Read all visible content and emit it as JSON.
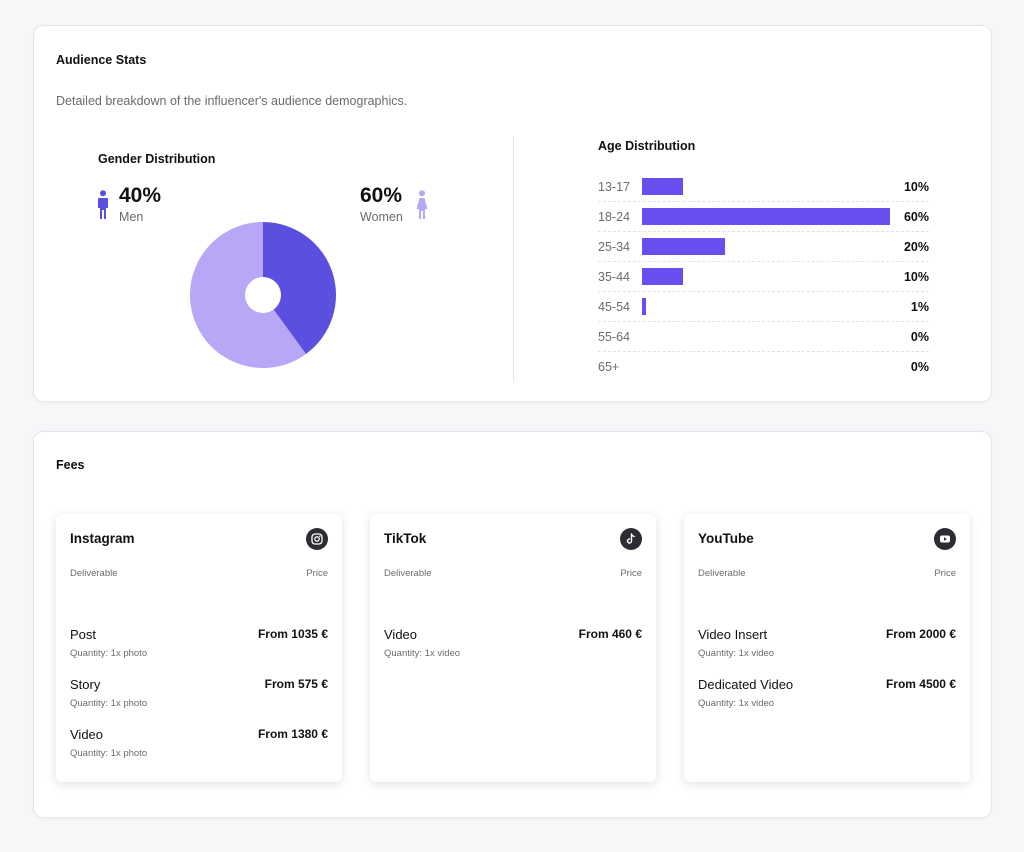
{
  "audience": {
    "title": "Audience Stats",
    "subtitle": "Detailed breakdown of the influencer's audience demographics."
  },
  "gender": {
    "title": "Gender Distribution",
    "men": {
      "pct": "40%",
      "label": "Men"
    },
    "women": {
      "pct": "60%",
      "label": "Women"
    }
  },
  "age": {
    "title": "Age Distribution"
  },
  "chart_data": [
    {
      "type": "pie",
      "title": "Gender Distribution",
      "categories": [
        "Men",
        "Women"
      ],
      "values": [
        40,
        60
      ],
      "colors": [
        "#5b4fe0",
        "#b8a6f7"
      ],
      "donut_hole": "small"
    },
    {
      "type": "bar",
      "orientation": "horizontal",
      "title": "Age Distribution",
      "categories": [
        "13-17",
        "18-24",
        "25-34",
        "35-44",
        "45-54",
        "55-64",
        "65+"
      ],
      "values": [
        10,
        60,
        20,
        10,
        1,
        0,
        0
      ],
      "labels": [
        "10%",
        "60%",
        "20%",
        "10%",
        "1%",
        "0%",
        "0%"
      ],
      "xlim": [
        0,
        60
      ],
      "color": "#6b4ef0"
    }
  ],
  "fees": {
    "title": "Fees",
    "cards": [
      {
        "platform": "Instagram",
        "icon": "instagram-icon",
        "deliverable_label": "Deliverable",
        "price_label": "Price",
        "items": [
          {
            "name": "Post",
            "price": "From 1035 €",
            "quantity": "Quantity: 1x photo"
          },
          {
            "name": "Story",
            "price": "From 575 €",
            "quantity": "Quantity: 1x photo"
          },
          {
            "name": "Video",
            "price": "From 1380 €",
            "quantity": "Quantity: 1x photo"
          }
        ]
      },
      {
        "platform": "TikTok",
        "icon": "tiktok-icon",
        "deliverable_label": "Deliverable",
        "price_label": "Price",
        "items": [
          {
            "name": "Video",
            "price": "From 460 €",
            "quantity": "Quantity: 1x video"
          }
        ]
      },
      {
        "platform": "YouTube",
        "icon": "youtube-icon",
        "deliverable_label": "Deliverable",
        "price_label": "Price",
        "items": [
          {
            "name": "Video Insert",
            "price": "From 2000 €",
            "quantity": "Quantity: 1x video"
          },
          {
            "name": "Dedicated Video",
            "price": "From 4500 €",
            "quantity": "Quantity: 1x video"
          }
        ]
      }
    ]
  },
  "colors": {
    "accent": "#6b4ef0",
    "men": "#5b4fe0",
    "women": "#b8a6f7",
    "icon_bg": "#2b2d33"
  }
}
